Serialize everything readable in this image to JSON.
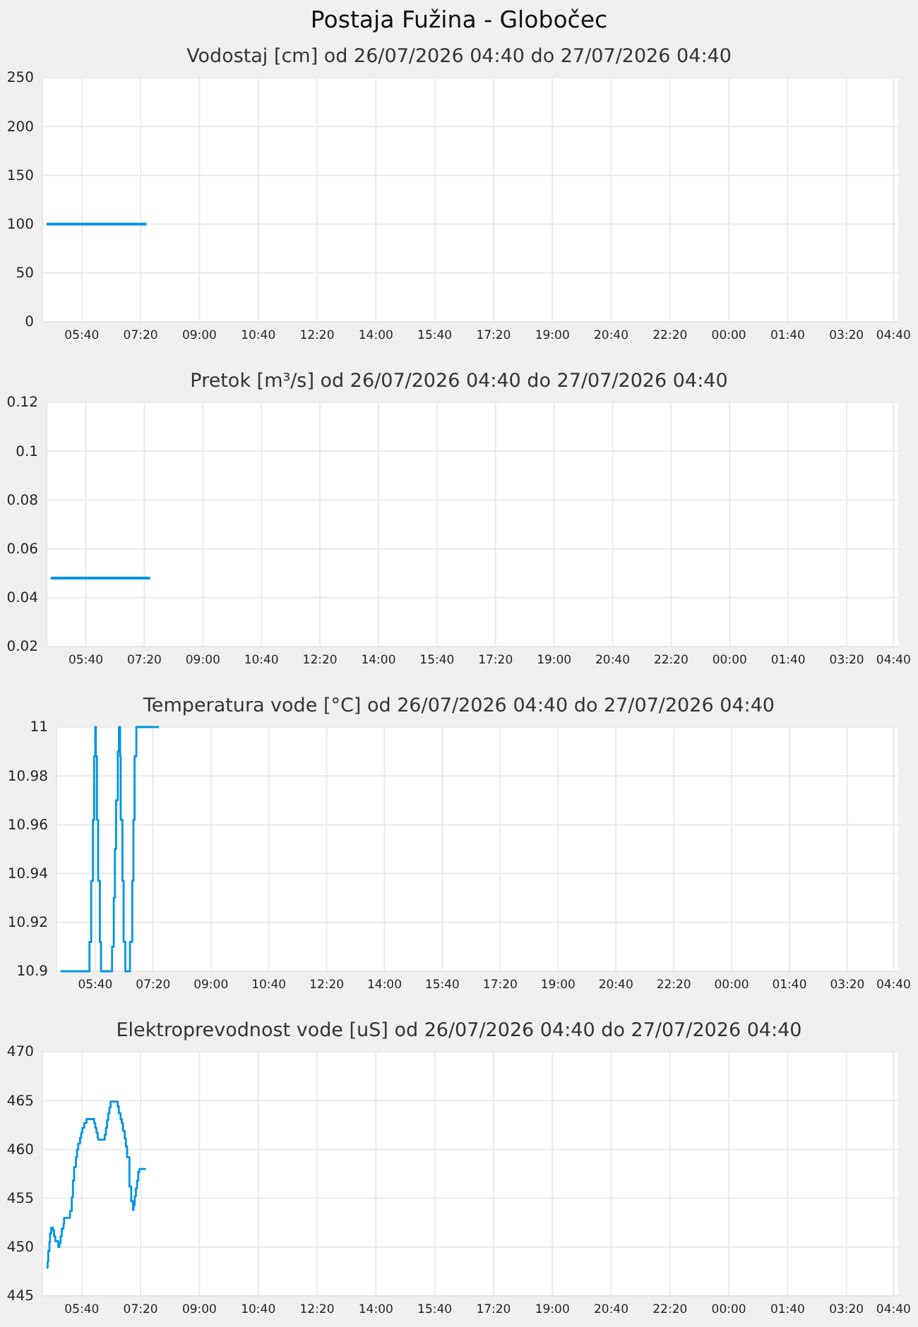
{
  "chart_data": [
    {
      "type": "line",
      "title": "Postaja Fužina - Globočec",
      "subtitle": "Vodostaj [cm] od 26/07/2026 04:40 do 27/07/2026 04:40",
      "x": [
        "2026-07-26T04:40",
        "2026-07-26T07:30"
      ],
      "values": [
        100,
        100
      ],
      "color": "#0095e5",
      "xlim": [
        "2026-07-26T04:33",
        "2026-07-27T04:48"
      ],
      "xticks": [
        {
          "value": "2026-07-26T05:40",
          "label": "05:40"
        },
        {
          "value": "2026-07-26T07:20",
          "label": "07:20"
        },
        {
          "value": "2026-07-26T09:00",
          "label": "09:00"
        },
        {
          "value": "2026-07-26T10:40",
          "label": "10:40"
        },
        {
          "value": "2026-07-26T12:20",
          "label": "12:20"
        },
        {
          "value": "2026-07-26T14:00",
          "label": "14:00"
        },
        {
          "value": "2026-07-26T15:40",
          "label": "15:40"
        },
        {
          "value": "2026-07-26T17:20",
          "label": "17:20"
        },
        {
          "value": "2026-07-26T19:00",
          "label": "19:00"
        },
        {
          "value": "2026-07-26T20:40",
          "label": "20:40"
        },
        {
          "value": "2026-07-26T22:20",
          "label": "22:20"
        },
        {
          "value": "2026-07-27T00:00",
          "label": "00:00"
        },
        {
          "value": "2026-07-27T01:40",
          "label": "01:40"
        },
        {
          "value": "2026-07-27T03:20",
          "label": "03:20"
        },
        {
          "value": "2026-07-27T04:40",
          "label": "04:40"
        }
      ],
      "ylim": [
        0,
        250
      ],
      "yticks": [
        0,
        50,
        100,
        150,
        200,
        250
      ],
      "grid": true
    },
    {
      "type": "line",
      "subtitle": "Pretok [m³/s] od 26/07/2026 04:40 do 27/07/2026 04:40",
      "x": [
        "2026-07-26T04:40",
        "2026-07-26T07:30"
      ],
      "values": [
        0.048,
        0.048
      ],
      "color": "#0095e5",
      "xlim": [
        "2026-07-26T04:33",
        "2026-07-27T04:48"
      ],
      "xticks": [
        {
          "value": "2026-07-26T05:40",
          "label": "05:40"
        },
        {
          "value": "2026-07-26T07:20",
          "label": "07:20"
        },
        {
          "value": "2026-07-26T09:00",
          "label": "09:00"
        },
        {
          "value": "2026-07-26T10:40",
          "label": "10:40"
        },
        {
          "value": "2026-07-26T12:20",
          "label": "12:20"
        },
        {
          "value": "2026-07-26T14:00",
          "label": "14:00"
        },
        {
          "value": "2026-07-26T15:40",
          "label": "15:40"
        },
        {
          "value": "2026-07-26T17:20",
          "label": "17:20"
        },
        {
          "value": "2026-07-26T19:00",
          "label": "19:00"
        },
        {
          "value": "2026-07-26T20:40",
          "label": "20:40"
        },
        {
          "value": "2026-07-26T22:20",
          "label": "22:20"
        },
        {
          "value": "2026-07-27T00:00",
          "label": "00:00"
        },
        {
          "value": "2026-07-27T01:40",
          "label": "01:40"
        },
        {
          "value": "2026-07-27T03:20",
          "label": "03:20"
        },
        {
          "value": "2026-07-27T04:40",
          "label": "04:40"
        }
      ],
      "ylim": [
        0.02,
        0.12
      ],
      "yticks": [
        0.02,
        0.04,
        0.06,
        0.08,
        0.1,
        0.12
      ],
      "grid": true
    },
    {
      "type": "step",
      "subtitle": "Temperatura vode [°C] od 26/07/2026 04:40 do 27/07/2026 04:40",
      "x": [
        "2026-07-26T04:40",
        "2026-07-26T05:30",
        "2026-07-26T05:33",
        "2026-07-26T05:36",
        "2026-07-26T05:38",
        "2026-07-26T05:40",
        "2026-07-26T05:41",
        "2026-07-26T05:43",
        "2026-07-26T05:45",
        "2026-07-26T05:48",
        "2026-07-26T05:50",
        "2026-07-26T06:09",
        "2026-07-26T06:12",
        "2026-07-26T06:14",
        "2026-07-26T06:16",
        "2026-07-26T06:19",
        "2026-07-26T06:21",
        "2026-07-26T06:23",
        "2026-07-26T06:24",
        "2026-07-26T06:27",
        "2026-07-26T06:29",
        "2026-07-26T06:32",
        "2026-07-26T06:40",
        "2026-07-26T06:44",
        "2026-07-26T06:46",
        "2026-07-26T06:48",
        "2026-07-26T06:51",
        "2026-07-26T07:30"
      ],
      "values": [
        10.9,
        10.912,
        10.937,
        10.962,
        10.988,
        11,
        10.988,
        10.962,
        10.937,
        10.912,
        10.9,
        10.91,
        10.93,
        10.95,
        10.97,
        10.99,
        11,
        10.988,
        10.962,
        10.937,
        10.912,
        10.9,
        10.912,
        10.937,
        10.962,
        10.988,
        11,
        11
      ],
      "color": "#0095e5",
      "xlim": [
        "2026-07-26T04:33",
        "2026-07-27T04:48"
      ],
      "xticks": [
        {
          "value": "2026-07-26T05:40",
          "label": "05:40"
        },
        {
          "value": "2026-07-26T07:20",
          "label": "07:20"
        },
        {
          "value": "2026-07-26T09:00",
          "label": "09:00"
        },
        {
          "value": "2026-07-26T10:40",
          "label": "10:40"
        },
        {
          "value": "2026-07-26T12:20",
          "label": "12:20"
        },
        {
          "value": "2026-07-26T14:00",
          "label": "14:00"
        },
        {
          "value": "2026-07-26T15:40",
          "label": "15:40"
        },
        {
          "value": "2026-07-26T17:20",
          "label": "17:20"
        },
        {
          "value": "2026-07-26T19:00",
          "label": "19:00"
        },
        {
          "value": "2026-07-26T20:40",
          "label": "20:40"
        },
        {
          "value": "2026-07-26T22:20",
          "label": "22:20"
        },
        {
          "value": "2026-07-27T00:00",
          "label": "00:00"
        },
        {
          "value": "2026-07-27T01:40",
          "label": "01:40"
        },
        {
          "value": "2026-07-27T03:20",
          "label": "03:20"
        },
        {
          "value": "2026-07-27T04:40",
          "label": "04:40"
        }
      ],
      "ylim": [
        10.9,
        11
      ],
      "yticks": [
        10.9,
        10.92,
        10.94,
        10.96,
        10.98,
        11
      ],
      "grid": true
    },
    {
      "type": "step",
      "subtitle": "Elektroprevodnost vode [uS] od 26/07/2026 04:40 do 27/07/2026 04:40",
      "x": [
        "2026-07-26T04:40",
        "2026-07-26T04:42",
        "2026-07-26T04:43",
        "2026-07-26T04:45",
        "2026-07-26T04:46",
        "2026-07-26T04:48",
        "2026-07-26T04:51",
        "2026-07-26T04:53",
        "2026-07-26T04:55",
        "2026-07-26T05:00",
        "2026-07-26T05:02",
        "2026-07-26T05:04",
        "2026-07-26T05:06",
        "2026-07-26T05:09",
        "2026-07-26T05:10",
        "2026-07-26T05:20",
        "2026-07-26T05:23",
        "2026-07-26T05:25",
        "2026-07-26T05:27",
        "2026-07-26T05:30",
        "2026-07-26T05:32",
        "2026-07-26T05:34",
        "2026-07-26T05:37",
        "2026-07-26T05:39",
        "2026-07-26T05:41",
        "2026-07-26T05:44",
        "2026-07-26T05:48",
        "2026-07-26T06:01",
        "2026-07-26T06:03",
        "2026-07-26T06:05",
        "2026-07-26T06:07",
        "2026-07-26T06:08",
        "2026-07-26T06:19",
        "2026-07-26T06:21",
        "2026-07-26T06:23",
        "2026-07-26T06:25",
        "2026-07-26T06:27",
        "2026-07-26T06:29",
        "2026-07-26T06:41",
        "2026-07-26T06:43",
        "2026-07-26T06:46",
        "2026-07-26T06:48",
        "2026-07-26T06:50",
        "2026-07-26T06:53",
        "2026-07-26T06:55",
        "2026-07-26T06:57",
        "2026-07-26T07:01",
        "2026-07-26T07:04",
        "2026-07-26T07:07",
        "2026-07-26T07:08",
        "2026-07-26T07:10",
        "2026-07-26T07:12",
        "2026-07-26T07:14",
        "2026-07-26T07:16",
        "2026-07-26T07:18",
        "2026-07-26T07:29"
      ],
      "values": [
        447.9,
        448.5,
        449.6,
        450.5,
        451.4,
        452,
        451.7,
        451.1,
        450.6,
        450,
        450.4,
        451.1,
        451.9,
        452.4,
        453,
        453.7,
        455.1,
        456.8,
        458.2,
        459.2,
        460,
        460.6,
        461.2,
        461.7,
        462.2,
        462.7,
        463.1,
        462.7,
        462.2,
        461.7,
        461.2,
        461,
        461.5,
        462.2,
        463,
        463.7,
        464.3,
        464.9,
        464.4,
        463.7,
        463.1,
        462.7,
        461.9,
        461.1,
        460.3,
        459.2,
        456.2,
        454.7,
        453.8,
        454.3,
        455.2,
        456,
        456.8,
        457.7,
        458,
        458
      ],
      "color": "#0095e5",
      "xlim": [
        "2026-07-26T04:33",
        "2026-07-27T04:48"
      ],
      "xticks": [
        {
          "value": "2026-07-26T05:40",
          "label": "05:40"
        },
        {
          "value": "2026-07-26T07:20",
          "label": "07:20"
        },
        {
          "value": "2026-07-26T09:00",
          "label": "09:00"
        },
        {
          "value": "2026-07-26T10:40",
          "label": "10:40"
        },
        {
          "value": "2026-07-26T12:20",
          "label": "12:20"
        },
        {
          "value": "2026-07-26T14:00",
          "label": "14:00"
        },
        {
          "value": "2026-07-26T15:40",
          "label": "15:40"
        },
        {
          "value": "2026-07-26T17:20",
          "label": "17:20"
        },
        {
          "value": "2026-07-26T19:00",
          "label": "19:00"
        },
        {
          "value": "2026-07-26T20:40",
          "label": "20:40"
        },
        {
          "value": "2026-07-26T22:20",
          "label": "22:20"
        },
        {
          "value": "2026-07-27T00:00",
          "label": "00:00"
        },
        {
          "value": "2026-07-27T01:40",
          "label": "01:40"
        },
        {
          "value": "2026-07-27T03:20",
          "label": "03:20"
        },
        {
          "value": "2026-07-27T04:40",
          "label": "04:40"
        }
      ],
      "ylim": [
        445,
        470
      ],
      "yticks": [
        445,
        450,
        455,
        460,
        465,
        470
      ],
      "grid": true
    }
  ]
}
